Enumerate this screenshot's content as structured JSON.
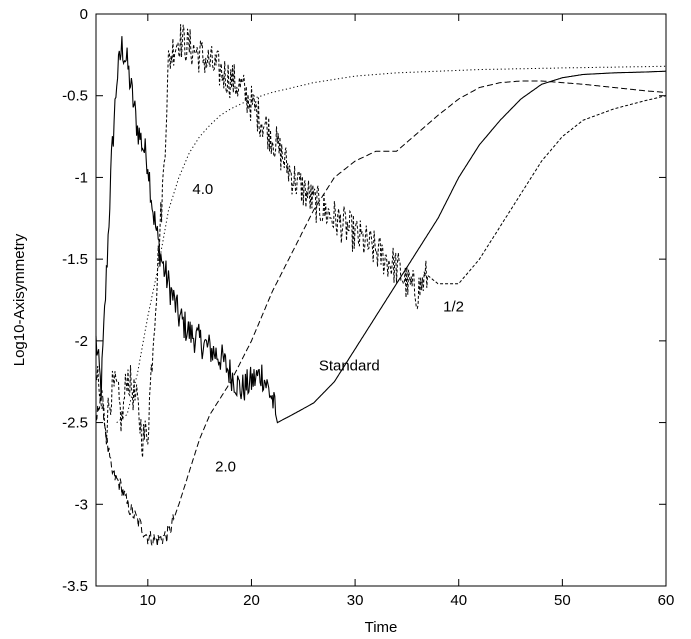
{
  "chart_data": {
    "type": "line",
    "title": "",
    "xlabel": "Time",
    "ylabel": "Log10-Axisymmetry",
    "xlim": [
      5,
      60
    ],
    "ylim": [
      -3.5,
      0
    ],
    "xticks": [
      10,
      20,
      30,
      40,
      50,
      60
    ],
    "yticks": [
      0,
      -0.5,
      -1,
      -1.5,
      -2,
      -2.5,
      -3,
      -3.5
    ],
    "grid": false,
    "series": [
      {
        "name": "Standard",
        "style": "solid",
        "noise": 0.1,
        "noise_until": 22.3,
        "x": [
          5,
          5.5,
          6,
          6.5,
          7,
          7.5,
          8,
          8.5,
          9,
          9.5,
          10,
          10.5,
          11,
          11.5,
          12,
          12.5,
          13,
          14,
          15,
          16,
          17,
          18,
          19,
          20,
          21,
          22,
          22.5,
          24,
          26,
          28,
          30,
          32,
          34,
          36,
          38,
          40,
          42,
          44,
          46,
          48,
          50,
          52,
          55,
          58,
          60
        ],
        "y": [
          -2.0,
          -2.3,
          -1.6,
          -0.9,
          -0.4,
          -0.2,
          -0.3,
          -0.5,
          -0.7,
          -0.8,
          -0.9,
          -1.2,
          -1.4,
          -1.55,
          -1.65,
          -1.75,
          -1.85,
          -1.95,
          -2.0,
          -2.05,
          -2.1,
          -2.2,
          -2.3,
          -2.25,
          -2.2,
          -2.35,
          -2.5,
          -2.45,
          -2.38,
          -2.25,
          -2.05,
          -1.85,
          -1.65,
          -1.45,
          -1.25,
          -1.0,
          -0.8,
          -0.65,
          -0.52,
          -0.43,
          -0.39,
          -0.37,
          -0.36,
          -0.355,
          -0.35
        ]
      },
      {
        "name": "2.0",
        "style": "dashed",
        "noise": 0.05,
        "noise_until": 12.5,
        "x": [
          5,
          5.5,
          6,
          6.5,
          7,
          7.5,
          8,
          8.5,
          9,
          9.5,
          10,
          11,
          12,
          13,
          14,
          15,
          16,
          18,
          20,
          22,
          24,
          26,
          28,
          30,
          32,
          33,
          34,
          36,
          38,
          40,
          42,
          44,
          46,
          48,
          50,
          52,
          55,
          58,
          60
        ],
        "y": [
          -2.5,
          -2.3,
          -2.6,
          -2.8,
          -2.85,
          -2.9,
          -3.0,
          -3.05,
          -3.1,
          -3.15,
          -3.2,
          -3.22,
          -3.18,
          -3.0,
          -2.8,
          -2.6,
          -2.45,
          -2.25,
          -2.0,
          -1.7,
          -1.45,
          -1.2,
          -1.0,
          -0.9,
          -0.84,
          -0.84,
          -0.84,
          -0.73,
          -0.62,
          -0.52,
          -0.45,
          -0.42,
          -0.41,
          -0.41,
          -0.42,
          -0.43,
          -0.45,
          -0.47,
          -0.48
        ]
      },
      {
        "name": "4.0",
        "style": "dotted",
        "noise": 0.0,
        "noise_until": 0,
        "x": [
          7,
          8,
          9,
          10,
          11,
          12,
          13,
          14,
          15,
          16,
          17,
          18,
          20,
          22,
          24,
          26,
          28,
          30,
          34,
          38,
          42,
          46,
          50,
          55,
          60
        ],
        "y": [
          -2.5,
          -2.45,
          -2.2,
          -1.85,
          -1.55,
          -1.2,
          -1.0,
          -0.85,
          -0.75,
          -0.68,
          -0.62,
          -0.58,
          -0.52,
          -0.48,
          -0.45,
          -0.42,
          -0.4,
          -0.38,
          -0.36,
          -0.35,
          -0.34,
          -0.335,
          -0.33,
          -0.325,
          -0.32
        ]
      },
      {
        "name": "1/2",
        "style": "short-dashed",
        "noise": 0.12,
        "noise_until": 37,
        "x": [
          5,
          5.5,
          6,
          6.5,
          7,
          7.5,
          8,
          8.5,
          9,
          9.5,
          10,
          10.5,
          11,
          11.5,
          12,
          12.5,
          13,
          14,
          15,
          16,
          17,
          18,
          19,
          20,
          22,
          24,
          26,
          28,
          30,
          32,
          33,
          34,
          35,
          36,
          37,
          38,
          40,
          42,
          44,
          46,
          48,
          50,
          52,
          55,
          58,
          60
        ],
        "y": [
          -2.2,
          -2.4,
          -2.5,
          -2.3,
          -2.3,
          -2.5,
          -2.2,
          -2.3,
          -2.4,
          -2.6,
          -2.55,
          -2.0,
          -1.5,
          -1.0,
          -0.3,
          -0.2,
          -0.15,
          -0.2,
          -0.25,
          -0.3,
          -0.35,
          -0.4,
          -0.45,
          -0.55,
          -0.75,
          -1.0,
          -1.15,
          -1.25,
          -1.35,
          -1.45,
          -1.5,
          -1.55,
          -1.65,
          -1.7,
          -1.6,
          -1.65,
          -1.65,
          -1.5,
          -1.3,
          -1.1,
          -0.9,
          -0.75,
          -0.65,
          -0.58,
          -0.53,
          -0.5
        ]
      }
    ],
    "annotations": [
      {
        "text": "4.0",
        "x": 14.3,
        "y": -1.1
      },
      {
        "text": "Standard",
        "x": 26.5,
        "y": -2.18
      },
      {
        "text": "2.0",
        "x": 16.5,
        "y": -2.8
      },
      {
        "text": "1/2",
        "x": 38.5,
        "y": -1.82
      }
    ]
  }
}
